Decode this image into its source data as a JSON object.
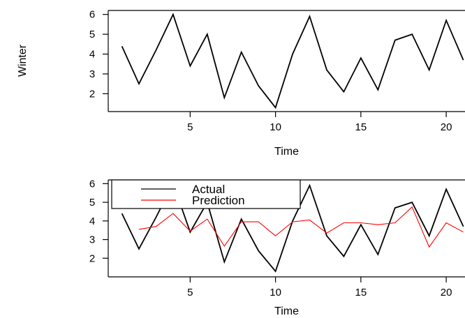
{
  "chart_data": [
    {
      "type": "line",
      "title": "",
      "xlabel": "Time",
      "ylabel": "Winter",
      "xlim": [
        0.2,
        21.1
      ],
      "ylim": [
        1.1,
        6.2
      ],
      "xticks": [
        5,
        10,
        15,
        20
      ],
      "yticks": [
        2,
        3,
        4,
        5,
        6
      ],
      "grid": false,
      "series": [
        {
          "color": "#000000",
          "x": [
            1,
            2,
            3,
            4,
            5,
            6,
            7,
            8,
            9,
            10,
            11,
            12,
            13,
            14,
            15,
            16,
            17,
            18,
            19,
            20,
            21
          ],
          "y": [
            4.4,
            2.5,
            4.2,
            6.0,
            3.4,
            5.0,
            1.8,
            4.1,
            2.4,
            1.3,
            4.0,
            5.9,
            3.2,
            2.1,
            3.8,
            2.2,
            4.7,
            5.0,
            3.2,
            5.7,
            3.7
          ]
        }
      ]
    },
    {
      "type": "line",
      "title": "",
      "xlabel": "Time",
      "ylabel": "",
      "xlim": [
        0.2,
        21.1
      ],
      "ylim": [
        1.0,
        6.2
      ],
      "xticks": [
        5,
        10,
        15,
        20
      ],
      "yticks": [
        2,
        3,
        4,
        5,
        6
      ],
      "grid": false,
      "legend": "top-left",
      "series": [
        {
          "name": "Actual",
          "color": "#000000",
          "x": [
            1,
            2,
            3,
            4,
            5,
            6,
            7,
            8,
            9,
            10,
            11,
            12,
            13,
            14,
            15,
            16,
            17,
            18,
            19,
            20,
            21
          ],
          "y": [
            4.4,
            2.5,
            4.2,
            6.0,
            3.4,
            5.0,
            1.8,
            4.1,
            2.4,
            1.3,
            4.0,
            5.9,
            3.2,
            2.1,
            3.8,
            2.2,
            4.7,
            5.0,
            3.2,
            5.7,
            3.7
          ]
        },
        {
          "name": "Prediction",
          "color": "#ff0000",
          "x": [
            2,
            3,
            4,
            5,
            6,
            7,
            8,
            9,
            10,
            11,
            12,
            13,
            14,
            15,
            16,
            17,
            18,
            19,
            20,
            21
          ],
          "y": [
            3.55,
            3.7,
            4.4,
            3.45,
            4.1,
            2.65,
            3.95,
            3.95,
            3.2,
            3.95,
            4.05,
            3.35,
            3.9,
            3.9,
            3.8,
            3.9,
            4.75,
            2.6,
            3.9,
            3.4
          ]
        }
      ]
    }
  ]
}
